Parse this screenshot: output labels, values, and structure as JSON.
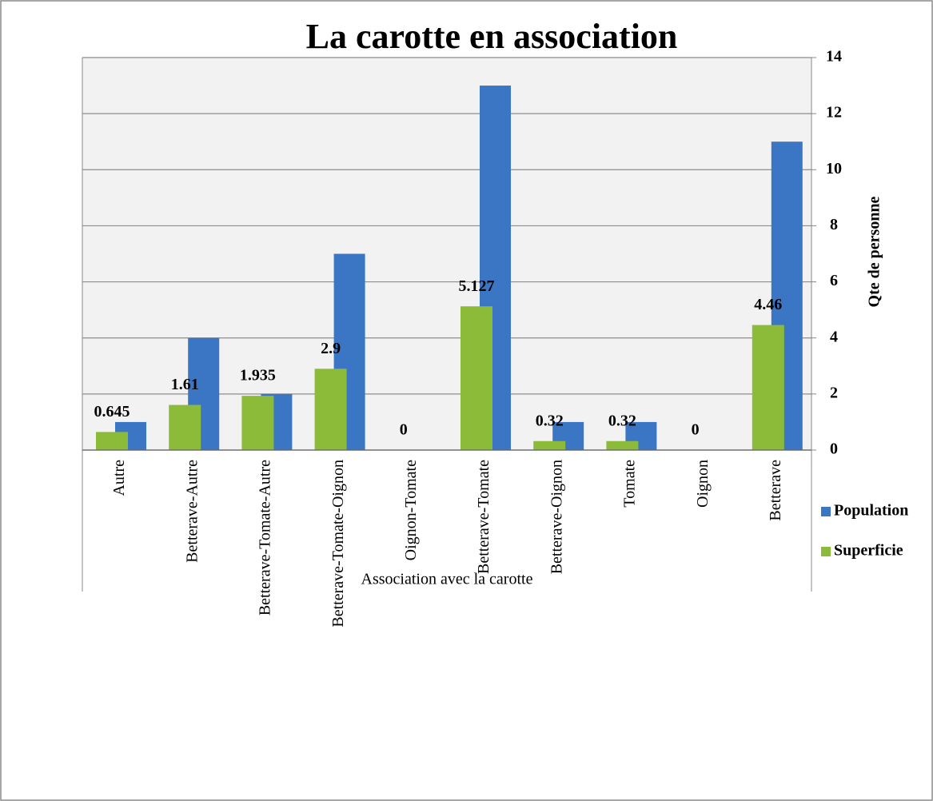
{
  "chart_data": {
    "type": "bar",
    "title": "La carotte en association",
    "x_label": "Association avec la carotte",
    "y_label": "Qte de personne",
    "categories": [
      "Autre",
      "Betterave-Autre",
      "Betterave-Tomate-Autre",
      "Betterave-Tomate-Oignon",
      "Oignon-Tomate",
      "Betterave-Tomate",
      "Betterave-Oignon",
      "Tomate",
      "Oignon",
      "Betterave"
    ],
    "series": [
      {
        "name": "Population",
        "color": "#3a76c4",
        "values": [
          1,
          4,
          2,
          7,
          0,
          13,
          1,
          1,
          0,
          11
        ]
      },
      {
        "name": "Superficie",
        "color": "#8cbb3a",
        "values": [
          0.645,
          1.61,
          1.935,
          2.9,
          0,
          5.127,
          0.32,
          0.32,
          0,
          4.46
        ],
        "data_labels": true
      }
    ],
    "ylim": [
      0,
      14
    ],
    "yticks": [
      0,
      2,
      4,
      6,
      8,
      10,
      12,
      14
    ],
    "grid": true,
    "legend": "right"
  }
}
